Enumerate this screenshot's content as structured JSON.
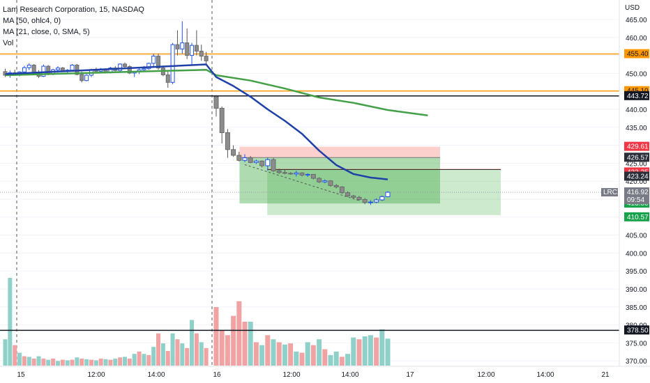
{
  "legend": {
    "title": "Lam Research Corporation, 15, NASDAQ",
    "ma1": "MA (50, ohlc4, 0)",
    "ma2": "MA (21, close, 0, SMA, 5)",
    "vol": "Vol"
  },
  "colors": {
    "up": "#26a69a",
    "down": "#ef5350",
    "orange": "#ff9800",
    "ma50": "#43a047",
    "ma21": "#1e40a8",
    "profit": "#4caf50",
    "loss": "#f44336",
    "price_tag": "#787b86"
  },
  "chart_data": {
    "type": "candlestick",
    "currency": "USD",
    "y_ticks": [
      "465.00",
      "460.00",
      "455.00",
      "450.00",
      "445.00",
      "440.00",
      "435.00",
      "430.00",
      "425.00",
      "420.00",
      "415.00",
      "410.00",
      "405.00",
      "400.00",
      "395.00",
      "390.00",
      "385.00",
      "380.00",
      "375.00",
      "370.00"
    ],
    "ylim": [
      367,
      467
    ],
    "x_ticks": [
      "15",
      "12:00",
      "14:00",
      "16",
      "12:00",
      "14:00",
      "17",
      "12:00",
      "14:00",
      "21"
    ],
    "symbol_tag": "LRCX",
    "last_price": "416.92",
    "countdown": "09:54",
    "price_labels": [
      {
        "label": "455.40",
        "value": 455.4,
        "type": "orange"
      },
      {
        "label": "445.10",
        "value": 445.1,
        "type": "orange"
      },
      {
        "label": "443.72",
        "value": 443.72,
        "type": "black"
      },
      {
        "label": "429.61",
        "value": 429.61,
        "type": "red"
      },
      {
        "label": "426.57",
        "value": 426.57,
        "type": "dark"
      },
      {
        "label": "423.25",
        "value": 423.25,
        "type": "red"
      },
      {
        "label": "423.24",
        "value": 423.24,
        "type": "dark"
      },
      {
        "label": "413.80",
        "value": 413.8,
        "type": "green"
      },
      {
        "label": "410.57",
        "value": 410.57,
        "type": "green"
      },
      {
        "label": "378.50",
        "value": 378.5,
        "type": "black"
      }
    ],
    "horizontal_lines": [
      {
        "value": 455.4,
        "color": "orange"
      },
      {
        "value": 445.1,
        "color": "orange"
      },
      {
        "value": 443.72,
        "color": "black"
      },
      {
        "value": 378.5,
        "color": "black"
      }
    ],
    "candles_day1": [
      [
        450.5,
        451.3,
        449.0,
        449.5
      ],
      [
        449.5,
        450.8,
        448.8,
        450.2
      ],
      [
        450.2,
        451.0,
        449.6,
        449.8
      ],
      [
        449.8,
        450.6,
        449.2,
        450.4
      ],
      [
        450.4,
        452.1,
        450.0,
        451.6
      ],
      [
        451.6,
        452.8,
        450.9,
        452.3
      ],
      [
        452.3,
        452.6,
        449.5,
        450.0
      ],
      [
        450.0,
        450.9,
        448.7,
        449.2
      ],
      [
        449.2,
        452.5,
        449.0,
        452.0
      ],
      [
        452.0,
        452.3,
        449.5,
        449.9
      ],
      [
        449.9,
        451.3,
        449.5,
        451.0
      ],
      [
        451.0,
        452.0,
        450.2,
        451.5
      ],
      [
        451.5,
        451.8,
        450.5,
        450.8
      ],
      [
        450.8,
        451.2,
        450.2,
        450.9
      ],
      [
        450.9,
        452.6,
        450.5,
        452.3
      ],
      [
        452.3,
        452.6,
        449.5,
        449.7
      ],
      [
        449.7,
        450.5,
        447.5,
        448.0
      ],
      [
        448.0,
        449.8,
        447.8,
        449.5
      ],
      [
        449.5,
        451.3,
        449.0,
        451.0
      ],
      [
        451.0,
        451.6,
        450.4,
        450.6
      ],
      [
        450.6,
        451.5,
        450.2,
        451.2
      ],
      [
        451.2,
        451.4,
        450.0,
        450.3
      ],
      [
        450.3,
        451.8,
        450.0,
        451.5
      ],
      [
        451.5,
        452.0,
        450.6,
        450.8
      ],
      [
        450.8,
        452.8,
        450.5,
        452.6
      ],
      [
        452.6,
        453.0,
        451.5,
        451.9
      ],
      [
        451.9,
        452.3,
        449.8,
        450.1
      ],
      [
        450.1,
        450.6,
        449.0,
        450.4
      ],
      [
        450.4,
        451.5,
        449.8,
        451.0
      ],
      [
        451.0,
        452.0,
        450.5,
        451.3
      ],
      [
        451.3,
        453.0,
        451.0,
        452.8
      ],
      [
        452.8,
        455.5,
        452.0,
        454.8
      ],
      [
        454.8,
        455.5,
        451.0,
        451.5
      ],
      [
        451.5,
        452.2,
        449.2,
        449.6
      ],
      [
        449.6,
        450.5,
        446.0,
        447.5
      ],
      [
        447.5,
        458.5,
        447.0,
        458.0
      ],
      [
        458.0,
        462.0,
        455.0,
        456.8
      ],
      [
        456.8,
        464.5,
        455.5,
        458.5
      ],
      [
        458.5,
        462.5,
        454.0,
        455.0
      ],
      [
        455.0,
        458.5,
        452.5,
        457.8
      ],
      [
        457.8,
        462.0,
        455.0,
        456.2
      ],
      [
        456.2,
        458.0,
        453.5,
        454.8
      ],
      [
        454.8,
        456.0,
        452.5,
        453.5
      ]
    ],
    "candles_day2": [
      [
        443.5,
        444.0,
        438.0,
        440.3
      ],
      [
        440.3,
        440.8,
        430.5,
        433.5
      ],
      [
        433.5,
        434.5,
        426.5,
        428.8
      ],
      [
        428.8,
        430.0,
        426.8,
        427.2
      ],
      [
        427.2,
        428.2,
        425.5,
        425.8
      ],
      [
        425.8,
        427.5,
        425.3,
        426.5
      ],
      [
        426.5,
        427.0,
        425.0,
        425.2
      ],
      [
        425.2,
        426.0,
        424.8,
        425.6
      ],
      [
        425.6,
        425.8,
        423.8,
        424.3
      ],
      [
        424.3,
        426.6,
        423.0,
        426.0
      ],
      [
        426.0,
        426.5,
        422.5,
        422.9
      ],
      [
        422.9,
        423.5,
        422.0,
        422.4
      ],
      [
        422.4,
        423.2,
        421.9,
        422.2
      ],
      [
        422.2,
        422.5,
        421.8,
        422.0
      ],
      [
        422.0,
        422.9,
        421.3,
        422.3
      ],
      [
        422.3,
        422.5,
        421.3,
        421.7
      ],
      [
        421.7,
        422.2,
        421.2,
        421.9
      ],
      [
        421.9,
        422.0,
        420.5,
        420.8
      ],
      [
        420.8,
        421.1,
        419.5,
        419.8
      ],
      [
        419.8,
        420.5,
        419.4,
        420.1
      ],
      [
        420.1,
        420.3,
        418.5,
        418.8
      ],
      [
        418.8,
        419.2,
        418.0,
        418.4
      ],
      [
        418.4,
        418.6,
        416.5,
        416.8
      ],
      [
        416.8,
        417.2,
        415.6,
        415.9
      ],
      [
        415.9,
        416.2,
        415.2,
        415.5
      ],
      [
        415.5,
        415.9,
        414.6,
        414.9
      ],
      [
        414.9,
        415.3,
        413.6,
        414.1
      ],
      [
        414.1,
        414.7,
        413.4,
        414.2
      ],
      [
        414.2,
        415.2,
        413.9,
        414.8
      ],
      [
        414.8,
        416.0,
        414.5,
        415.7
      ],
      [
        415.7,
        417.2,
        415.5,
        416.92
      ]
    ],
    "volume_day1": [
      [
        45,
        "up"
      ],
      [
        150,
        "up"
      ],
      [
        35,
        "down"
      ],
      [
        22,
        "up"
      ],
      [
        16,
        "down"
      ],
      [
        15,
        "up"
      ],
      [
        12,
        "down"
      ],
      [
        16,
        "up"
      ],
      [
        12,
        "down"
      ],
      [
        10,
        "up"
      ],
      [
        12,
        "down"
      ],
      [
        8,
        "up"
      ],
      [
        10,
        "down"
      ],
      [
        9,
        "up"
      ],
      [
        10,
        "down"
      ],
      [
        14,
        "up"
      ],
      [
        12,
        "down"
      ],
      [
        11,
        "up"
      ],
      [
        10,
        "down"
      ],
      [
        9,
        "up"
      ],
      [
        12,
        "down"
      ],
      [
        11,
        "up"
      ],
      [
        10,
        "down"
      ],
      [
        12,
        "up"
      ],
      [
        14,
        "down"
      ],
      [
        15,
        "up"
      ],
      [
        12,
        "down"
      ],
      [
        20,
        "up"
      ],
      [
        24,
        "down"
      ],
      [
        20,
        "up"
      ],
      [
        18,
        "down"
      ],
      [
        32,
        "up"
      ],
      [
        55,
        "down"
      ],
      [
        38,
        "up"
      ],
      [
        25,
        "down"
      ],
      [
        55,
        "up"
      ],
      [
        45,
        "down"
      ],
      [
        38,
        "up"
      ],
      [
        30,
        "down"
      ],
      [
        78,
        "up"
      ],
      [
        55,
        "down"
      ],
      [
        40,
        "up"
      ],
      [
        30,
        "down"
      ]
    ],
    "volume_day2": [
      [
        100,
        "down"
      ],
      [
        60,
        "down"
      ],
      [
        52,
        "down"
      ],
      [
        85,
        "down"
      ],
      [
        110,
        "down"
      ],
      [
        75,
        "down"
      ],
      [
        75,
        "up"
      ],
      [
        40,
        "down"
      ],
      [
        35,
        "up"
      ],
      [
        52,
        "down"
      ],
      [
        45,
        "up"
      ],
      [
        40,
        "down"
      ],
      [
        36,
        "up"
      ],
      [
        38,
        "down"
      ],
      [
        24,
        "up"
      ],
      [
        22,
        "down"
      ],
      [
        40,
        "up"
      ],
      [
        35,
        "down"
      ],
      [
        45,
        "up"
      ],
      [
        28,
        "down"
      ],
      [
        18,
        "up"
      ],
      [
        24,
        "up"
      ],
      [
        15,
        "down"
      ],
      [
        20,
        "up"
      ],
      [
        48,
        "up"
      ],
      [
        45,
        "down"
      ],
      [
        50,
        "up"
      ],
      [
        52,
        "up"
      ],
      [
        48,
        "down"
      ],
      [
        62,
        "up"
      ],
      [
        46,
        "up"
      ]
    ],
    "ma50_points": [
      [
        "day1",
        0,
        449.5
      ],
      [
        "day1",
        42,
        451.0
      ],
      [
        "day2",
        0,
        449.5
      ],
      [
        "day2",
        6,
        448.0
      ],
      [
        "day2",
        12,
        445.8
      ],
      [
        "day2",
        18,
        443.3
      ],
      [
        "day2",
        24,
        441.8
      ],
      [
        "day2",
        30,
        439.8
      ],
      [
        "day2",
        37,
        438.3
      ]
    ],
    "ma21_points": [
      [
        "day1",
        0,
        449.8
      ],
      [
        "day1",
        42,
        452.5
      ],
      [
        "day2",
        0,
        449.0
      ],
      [
        "day2",
        3,
        446.5
      ],
      [
        "day2",
        6,
        443.5
      ],
      [
        "day2",
        9,
        440.0
      ],
      [
        "day2",
        12,
        436.8
      ],
      [
        "day2",
        15,
        433.2
      ],
      [
        "day2",
        18,
        428.5
      ],
      [
        "day2",
        21,
        424.5
      ],
      [
        "day2",
        24,
        422.0
      ],
      [
        "day2",
        27,
        421.0
      ],
      [
        "day2",
        30,
        420.5
      ]
    ],
    "positions": [
      {
        "kind": "short",
        "entry": 426.57,
        "stop": 429.61,
        "target": 413.8,
        "start_idx": 2,
        "end_idx": 31
      },
      {
        "kind": "short",
        "entry": 423.24,
        "stop": 423.25,
        "target": 410.57,
        "start_idx": 6,
        "end_idx": 40
      }
    ],
    "trend_line": {
      "from": [
        5,
        424.6
      ],
      "to": [
        25,
        414.6
      ]
    }
  }
}
